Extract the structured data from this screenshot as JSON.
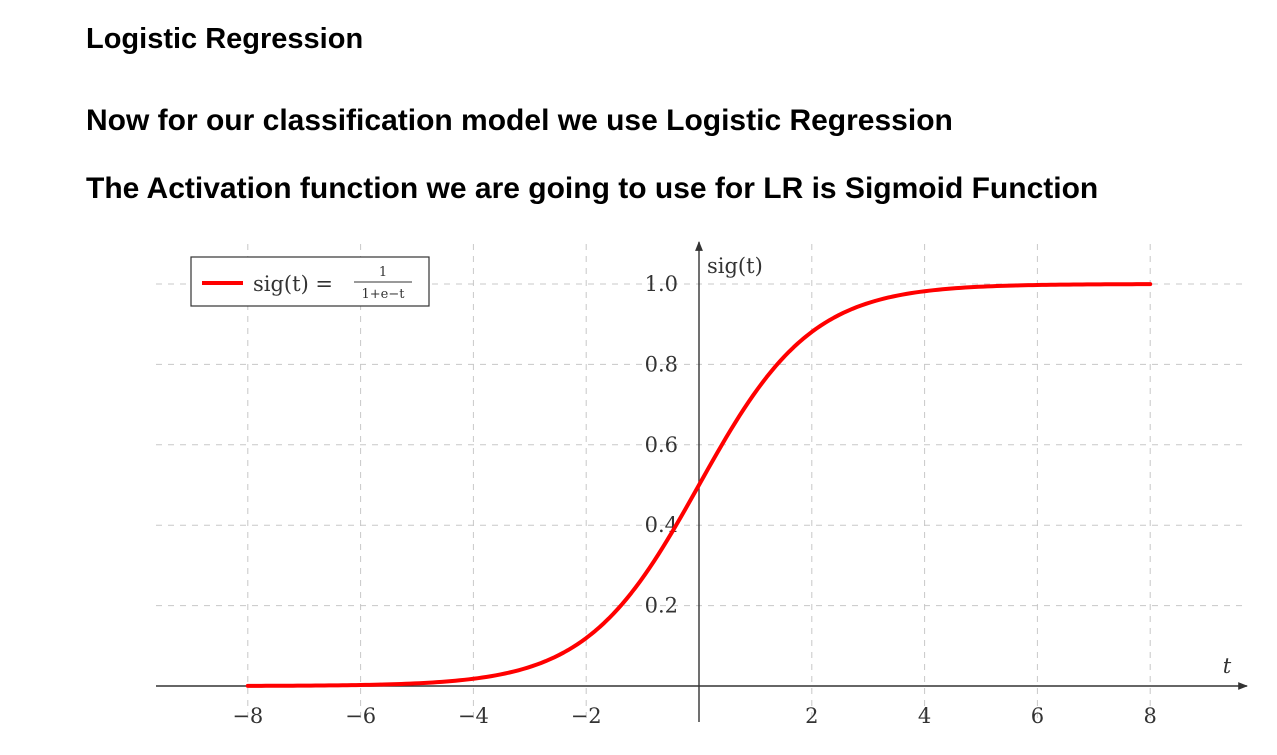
{
  "page": {
    "title": "Logistic Regression",
    "line1": "Now for our classification model we use Logistic Regression",
    "line2": "The Activation function we are going to use for LR is Sigmoid Function"
  },
  "chart_data": {
    "type": "line",
    "xlabel": "t",
    "ylabel": "sig(t)",
    "xlim": [
      -9.3,
      9.6
    ],
    "ylim": [
      0,
      1.1
    ],
    "xticks": [
      -8,
      -6,
      -4,
      -2,
      2,
      4,
      6,
      8
    ],
    "xtick_labels": [
      "−8",
      "−6",
      "−4",
      "−2",
      "2",
      "4",
      "6",
      "8"
    ],
    "yticks": [
      0.2,
      0.4,
      0.6,
      0.8,
      1.0
    ],
    "ytick_labels": [
      "0.2",
      "0.4",
      "0.6",
      "0.8",
      "1.0"
    ],
    "grid": true,
    "legend_position": "top-left",
    "series": [
      {
        "name": "sig(t) = 1/(1+e^−t)",
        "legend_lhs": "sig(t) =",
        "legend_num": "1",
        "legend_den": "1+e−t",
        "color": "#ff0000",
        "x": [
          -8,
          -7,
          -6,
          -5,
          -4,
          -3,
          -2,
          -1,
          0,
          1,
          2,
          3,
          4,
          5,
          6,
          7,
          8
        ],
        "y": [
          0.0003,
          0.0009,
          0.0025,
          0.0067,
          0.018,
          0.047,
          0.119,
          0.269,
          0.5,
          0.731,
          0.881,
          0.953,
          0.982,
          0.9933,
          0.9975,
          0.9991,
          0.9997
        ]
      }
    ]
  }
}
